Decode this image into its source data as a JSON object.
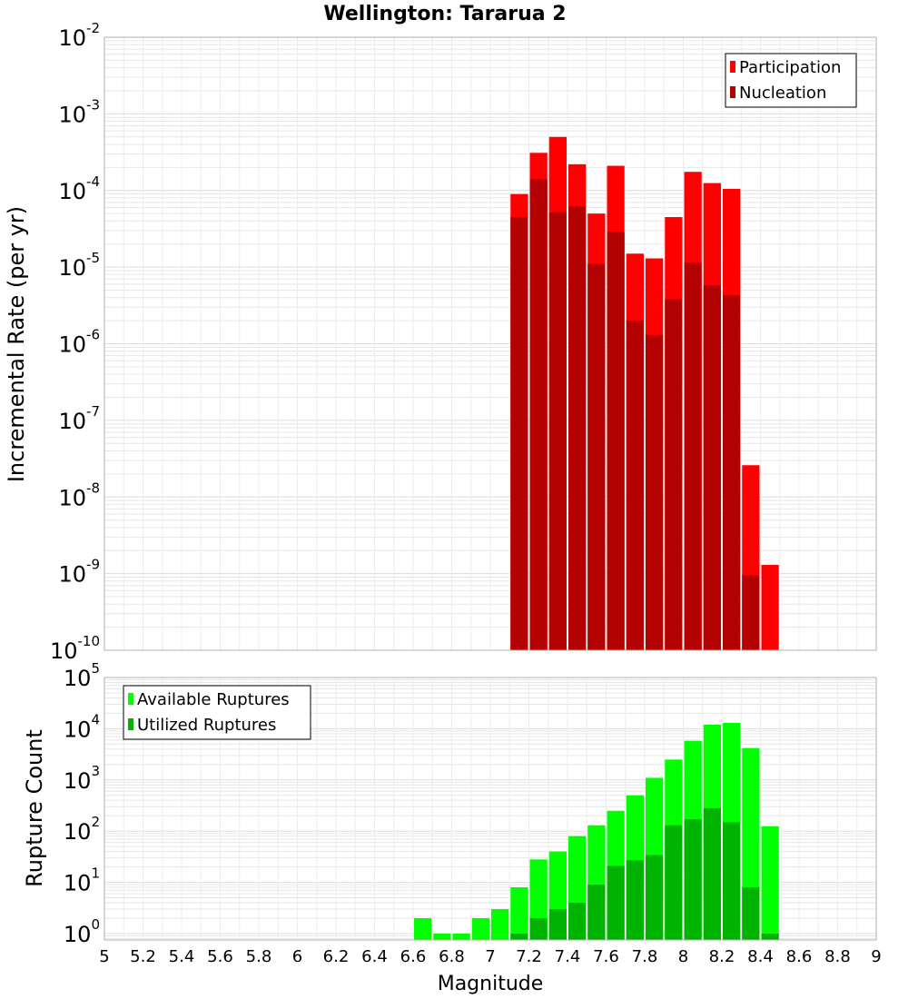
{
  "title": "Wellington: Tararua 2",
  "xlabel": "Magnitude",
  "colors": {
    "participation": "#ff0000",
    "nucleation": "#b30000",
    "available": "#00ff00",
    "utilized": "#00b300",
    "grid": "#e6e6e6",
    "frame": "#b0b0b0"
  },
  "chart_data": [
    {
      "type": "bar",
      "name": "rate-panel",
      "ylabel": "Incremental Rate (per yr)",
      "yscale": "log",
      "ylim": [
        1e-10,
        0.01
      ],
      "xlim": [
        5,
        9
      ],
      "legend_position": "top-right",
      "bin_width": 0.1,
      "x": [
        7.15,
        7.25,
        7.35,
        7.45,
        7.55,
        7.65,
        7.75,
        7.85,
        7.95,
        8.05,
        8.15,
        8.25,
        8.35,
        8.45
      ],
      "series": [
        {
          "name": "Participation",
          "color": "#ff0000",
          "values": [
            9e-05,
            0.00031,
            0.0005,
            0.00022,
            5e-05,
            0.00021,
            1.5e-05,
            1.3e-05,
            4.5e-05,
            0.000175,
            0.000125,
            0.000105,
            2.6e-08,
            1.3e-09
          ]
        },
        {
          "name": "Nucleation",
          "color": "#b30000",
          "values": [
            4.5e-05,
            0.00014,
            5.2e-05,
            6.2e-05,
            1.1e-05,
            2.9e-05,
            2e-06,
            1.3e-06,
            3.8e-06,
            1.15e-05,
            5.8e-06,
            4.3e-06,
            9.5e-10,
            null
          ]
        }
      ]
    },
    {
      "type": "bar",
      "name": "count-panel",
      "ylabel": "Rupture Count",
      "yscale": "log",
      "ylim": [
        0.75,
        100000
      ],
      "xlim": [
        5,
        9
      ],
      "legend_position": "top-left",
      "bin_width": 0.1,
      "x": [
        6.65,
        6.75,
        6.85,
        6.95,
        7.05,
        7.15,
        7.25,
        7.35,
        7.45,
        7.55,
        7.65,
        7.75,
        7.85,
        7.95,
        8.05,
        8.15,
        8.25,
        8.35,
        8.45
      ],
      "series": [
        {
          "name": "Available Ruptures",
          "color": "#00ff00",
          "values": [
            2,
            1,
            1,
            2,
            3,
            8,
            28,
            40,
            80,
            130,
            250,
            500,
            1100,
            2500,
            5800,
            12000,
            13000,
            4200,
            125
          ]
        },
        {
          "name": "Utilized Ruptures",
          "color": "#00b300",
          "values": [
            null,
            null,
            null,
            null,
            null,
            1,
            2,
            3,
            4,
            9,
            21,
            27,
            34,
            130,
            170,
            280,
            150,
            8,
            1
          ]
        }
      ]
    }
  ],
  "y_ticks_top": [
    {
      "base": "10",
      "exp": "-10"
    },
    {
      "base": "10",
      "exp": "-9"
    },
    {
      "base": "10",
      "exp": "-8"
    },
    {
      "base": "10",
      "exp": "-7"
    },
    {
      "base": "10",
      "exp": "-6"
    },
    {
      "base": "10",
      "exp": "-5"
    },
    {
      "base": "10",
      "exp": "-4"
    },
    {
      "base": "10",
      "exp": "-3"
    },
    {
      "base": "10",
      "exp": "-2"
    }
  ],
  "y_ticks_bottom": [
    {
      "base": "10",
      "exp": "0"
    },
    {
      "base": "10",
      "exp": "1"
    },
    {
      "base": "10",
      "exp": "2"
    },
    {
      "base": "10",
      "exp": "3"
    },
    {
      "base": "10",
      "exp": "4"
    },
    {
      "base": "10",
      "exp": "5"
    }
  ],
  "x_ticks": [
    "5",
    "5.2",
    "5.4",
    "5.6",
    "5.8",
    "6",
    "6.2",
    "6.4",
    "6.6",
    "6.8",
    "7",
    "7.2",
    "7.4",
    "7.6",
    "7.8",
    "8",
    "8.2",
    "8.4",
    "8.6",
    "8.8",
    "9"
  ]
}
